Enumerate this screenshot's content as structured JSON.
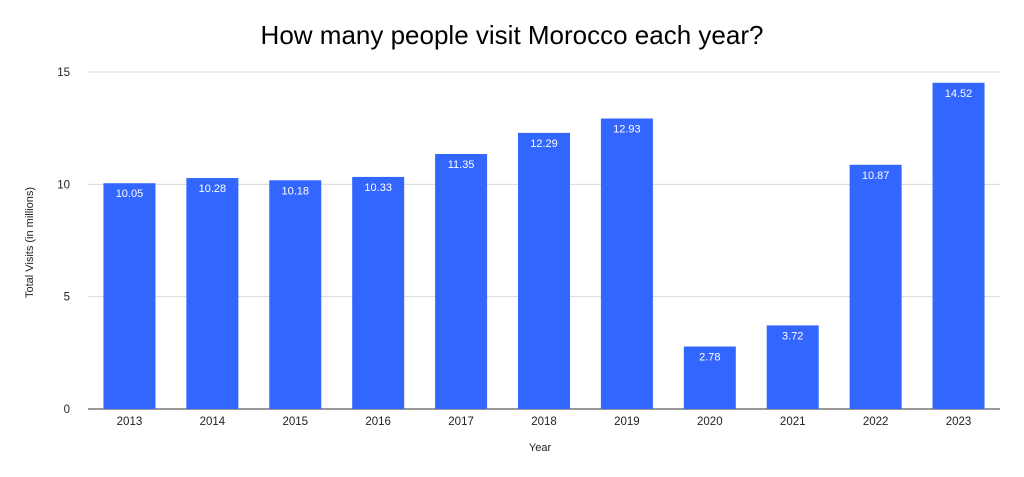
{
  "chart_data": {
    "type": "bar",
    "title": "How many people visit Morocco each year?",
    "xlabel": "Year",
    "ylabel": "Total Visits (in millions)",
    "ylim": [
      0,
      15
    ],
    "yticks": [
      "0",
      "5",
      "10",
      "15"
    ],
    "grid": true,
    "legend": "none",
    "bar_color": "#3366ff",
    "categories": [
      "2013",
      "2014",
      "2015",
      "2016",
      "2017",
      "2018",
      "2019",
      "2020",
      "2021",
      "2022",
      "2023"
    ],
    "values": [
      10.05,
      10.28,
      10.18,
      10.33,
      11.35,
      12.29,
      12.93,
      2.78,
      3.72,
      10.87,
      14.52
    ],
    "data_labels": [
      "10.05",
      "10.28",
      "10.18",
      "10.33",
      "11.35",
      "12.29",
      "12.93",
      "2.78",
      "3.72",
      "10.87",
      "14.52"
    ]
  }
}
